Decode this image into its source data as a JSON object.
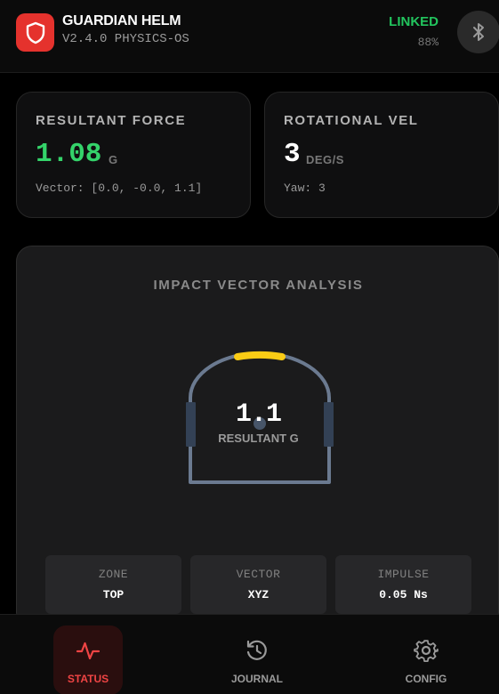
{
  "header": {
    "title": "GUARDIAN HELM",
    "version": "V2.4.0 PHYSICS-OS",
    "link_status": "LINKED",
    "battery": "88%",
    "logo_icon": "shield-icon",
    "bluetooth_icon": "bluetooth-icon"
  },
  "cards": {
    "force": {
      "label": "RESULTANT FORCE",
      "value": "1.08",
      "unit": "G",
      "sub": "Vector: [0.0, -0.0, 1.1]"
    },
    "rotation": {
      "label": "ROTATIONAL VEL",
      "value": "3",
      "unit": "DEG/S",
      "sub": "Yaw: 3"
    }
  },
  "analysis": {
    "title": "IMPACT VECTOR ANALYSIS",
    "impact_value": "1.1",
    "impact_label": "RESULTANT G",
    "highlight_zone": "top",
    "metrics": [
      {
        "label": "ZONE",
        "value": "TOP"
      },
      {
        "label": "VECTOR",
        "value": "XYZ"
      },
      {
        "label": "IMPULSE",
        "value": "0.05 Ns"
      }
    ]
  },
  "nav": [
    {
      "label": "STATUS",
      "icon": "activity-icon",
      "active": true
    },
    {
      "label": "JOURNAL",
      "icon": "history-icon",
      "active": false
    },
    {
      "label": "CONFIG",
      "icon": "gear-icon",
      "active": false
    }
  ],
  "colors": {
    "accent_red": "#e5322d",
    "linked_green": "#22c55e",
    "force_green": "#34d36a",
    "impact_yellow": "#facc15",
    "helmet_outline": "#6b7a90"
  }
}
